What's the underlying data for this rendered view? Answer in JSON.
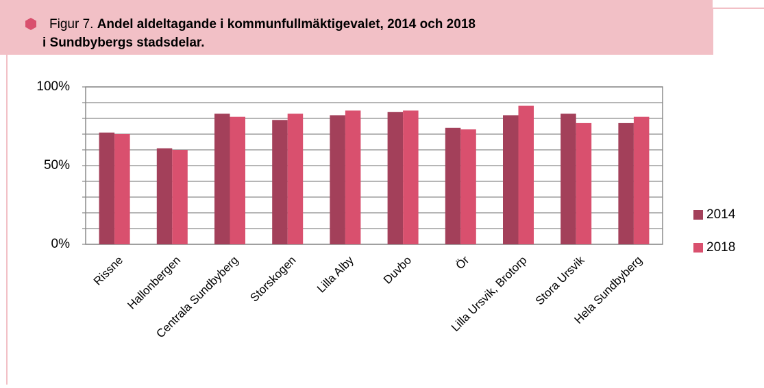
{
  "chart_data": {
    "type": "bar",
    "figure_label": "Figur 7.",
    "title_lines": [
      "Andel aldeltagande i kommunfullmäktigevalet, 2014 och 2018",
      "i Sundbybergs stadsdelar."
    ],
    "categories": [
      "Rissne",
      "Hallonbergen",
      "Centrala Sundbyberg",
      "Storskogen",
      "Lilla Alby",
      "Duvbo",
      "Ör",
      "Lilla Ursvik, Brotorp",
      "Stora Ursvik",
      "Hela Sundbyberg"
    ],
    "series": [
      {
        "name": "2014",
        "color": "#a3405a",
        "values": [
          71,
          61,
          83,
          79,
          82,
          84,
          74,
          82,
          83,
          77
        ]
      },
      {
        "name": "2018",
        "color": "#d9506e",
        "values": [
          70,
          60,
          81,
          83,
          85,
          85,
          73,
          88,
          77,
          81
        ]
      }
    ],
    "ylim": [
      0,
      100
    ],
    "yticks": [
      {
        "value": 0,
        "label": "0%"
      },
      {
        "value": 50,
        "label": "50%"
      },
      {
        "value": 100,
        "label": "100%"
      }
    ],
    "minor_yticks": [
      10,
      20,
      30,
      40,
      60,
      70,
      80,
      90
    ],
    "grid": true,
    "legend": "right"
  }
}
